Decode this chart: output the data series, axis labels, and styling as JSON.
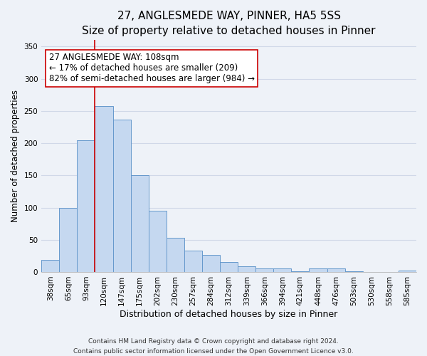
{
  "title": "27, ANGLESMEDE WAY, PINNER, HA5 5SS",
  "subtitle": "Size of property relative to detached houses in Pinner",
  "xlabel": "Distribution of detached houses by size in Pinner",
  "ylabel": "Number of detached properties",
  "bar_labels": [
    "38sqm",
    "65sqm",
    "93sqm",
    "120sqm",
    "147sqm",
    "175sqm",
    "202sqm",
    "230sqm",
    "257sqm",
    "284sqm",
    "312sqm",
    "339sqm",
    "366sqm",
    "394sqm",
    "421sqm",
    "448sqm",
    "476sqm",
    "503sqm",
    "530sqm",
    "558sqm",
    "585sqm"
  ],
  "bar_values": [
    19,
    100,
    205,
    257,
    236,
    150,
    95,
    53,
    33,
    27,
    15,
    9,
    5,
    5,
    1,
    5,
    5,
    1,
    0,
    0,
    2
  ],
  "bar_color": "#c5d8f0",
  "bar_edge_color": "#6699cc",
  "vline_x_index": 3,
  "vline_color": "#cc0000",
  "annotation_text": "27 ANGLESMEDE WAY: 108sqm\n← 17% of detached houses are smaller (209)\n82% of semi-detached houses are larger (984) →",
  "annotation_box_color": "#ffffff",
  "annotation_box_edgecolor": "#cc0000",
  "ylim": [
    0,
    360
  ],
  "yticks": [
    0,
    50,
    100,
    150,
    200,
    250,
    300,
    350
  ],
  "footer1": "Contains HM Land Registry data © Crown copyright and database right 2024.",
  "footer2": "Contains public sector information licensed under the Open Government Licence v3.0.",
  "background_color": "#eef2f8",
  "grid_color": "#d0d8e8",
  "title_fontsize": 11,
  "subtitle_fontsize": 9.5,
  "xlabel_fontsize": 9,
  "ylabel_fontsize": 8.5,
  "tick_fontsize": 7.5,
  "annotation_fontsize": 8.5,
  "footer_fontsize": 6.5
}
